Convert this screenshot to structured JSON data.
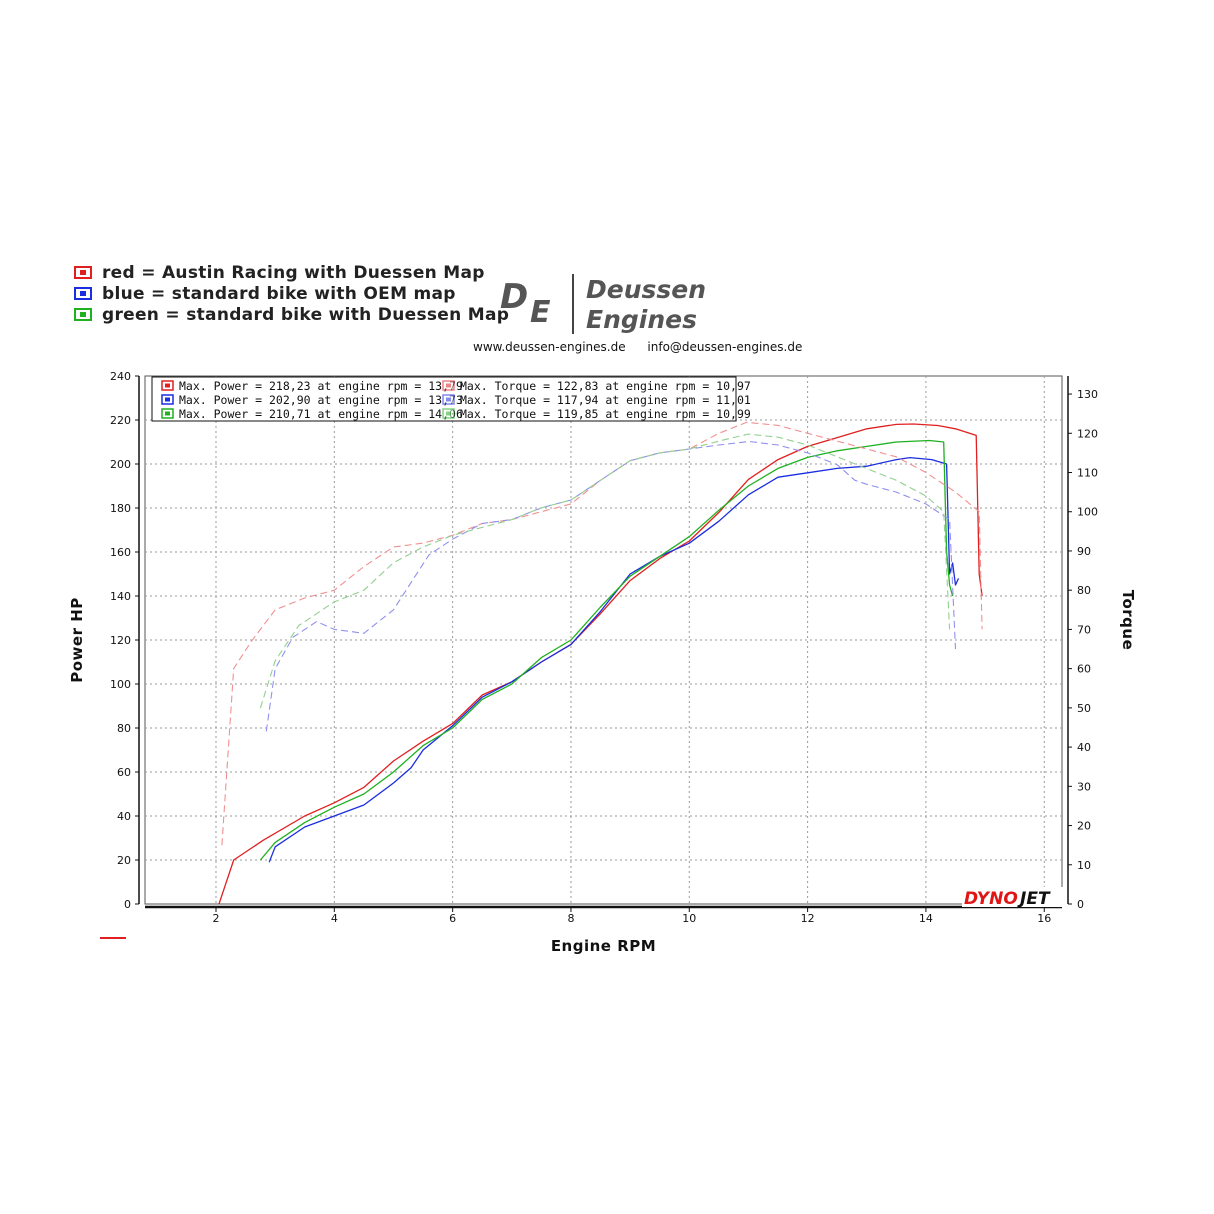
{
  "legend": [
    {
      "label": "red = Austin Racing with Duessen Map",
      "color": "#e02020"
    },
    {
      "label": "blue = standard bike with OEM map",
      "color": "#1a2ee0"
    },
    {
      "label": "green = standard bike with Duessen Map",
      "color": "#20b020"
    }
  ],
  "logo": {
    "brand_line1": "Deussen",
    "brand_line2": "Engines",
    "monogram_d": "D",
    "monogram_e": "E",
    "website": "www.deussen-engines.de",
    "email": "info@deussen-engines.de"
  },
  "dynojet": {
    "part1": "DYNO",
    "part2": "JET"
  },
  "chart_data": {
    "type": "line",
    "xlabel": "Engine RPM",
    "ylabel": "Power HP",
    "y2label": "Torque",
    "xlim": [
      0.8,
      16.3
    ],
    "ylim": [
      0,
      240
    ],
    "y2lim": [
      0,
      134.6
    ],
    "xticks": [
      2,
      4,
      6,
      8,
      10,
      12,
      14,
      16
    ],
    "yticks": [
      0,
      20,
      40,
      60,
      80,
      100,
      120,
      140,
      160,
      180,
      200,
      220,
      240
    ],
    "y2ticks": [
      0,
      10,
      20,
      30,
      40,
      50,
      60,
      70,
      80,
      90,
      100,
      110,
      120,
      130
    ],
    "grid": true,
    "summary": [
      {
        "color": "#e02020",
        "power": "Max. Power = 218,23 at engine rpm = 13,79",
        "torque": "Max. Torque = 122,83 at engine rpm = 10,97"
      },
      {
        "color": "#1a2ee0",
        "power": "Max. Power = 202,90 at engine rpm = 13,73",
        "torque": "Max. Torque = 117,94 at engine rpm = 11,01"
      },
      {
        "color": "#20b020",
        "power": "Max. Power = 210,71 at engine rpm = 14,06",
        "torque": "Max. Torque = 119,85 at engine rpm = 10,99"
      }
    ],
    "series": [
      {
        "metric": "power",
        "color": "#e02020",
        "x": [
          2.05,
          2.3,
          2.8,
          3.5,
          4.0,
          4.5,
          5.0,
          5.5,
          6.0,
          6.5,
          7.0,
          7.5,
          8.0,
          8.5,
          9.0,
          9.5,
          10.0,
          10.5,
          11.0,
          11.5,
          12.0,
          12.5,
          13.0,
          13.5,
          13.79,
          14.2,
          14.5,
          14.85,
          14.9,
          14.95
        ],
        "y": [
          0,
          20,
          29,
          40,
          46,
          53,
          65,
          74,
          82,
          95,
          101,
          110,
          118,
          132,
          147,
          157,
          165,
          178,
          193,
          202,
          208,
          212,
          216,
          218,
          218.2,
          217.5,
          216,
          213,
          150,
          140
        ]
      },
      {
        "metric": "power",
        "color": "#1a2ee0",
        "x": [
          2.9,
          3.0,
          3.5,
          4.0,
          4.5,
          5.0,
          5.3,
          5.5,
          6.0,
          6.5,
          7.0,
          7.5,
          8.0,
          8.5,
          9.0,
          9.5,
          10.0,
          10.5,
          11.0,
          11.5,
          12.0,
          12.5,
          13.0,
          13.5,
          13.73,
          14.1,
          14.35,
          14.4,
          14.45,
          14.5,
          14.55
        ],
        "y": [
          19,
          26,
          35,
          40,
          45,
          55,
          62,
          70,
          81,
          94,
          101,
          110,
          118,
          133,
          150,
          158,
          164,
          174,
          186,
          194,
          196,
          198,
          199,
          202,
          202.9,
          202,
          200,
          150,
          155,
          145,
          148
        ]
      },
      {
        "metric": "power",
        "color": "#20b020",
        "x": [
          2.75,
          3.0,
          3.5,
          4.0,
          4.5,
          5.0,
          5.5,
          6.0,
          6.5,
          7.0,
          7.5,
          8.0,
          8.5,
          9.0,
          9.5,
          10.0,
          10.5,
          11.0,
          11.5,
          12.0,
          12.5,
          13.0,
          13.5,
          14.06,
          14.3,
          14.35,
          14.4,
          14.45
        ],
        "y": [
          20,
          28,
          37,
          44,
          50,
          60,
          72,
          80,
          93,
          100,
          112,
          120,
          135,
          149,
          158,
          167,
          179,
          190,
          198,
          203,
          206,
          208,
          210,
          210.7,
          210,
          160,
          145,
          140
        ]
      },
      {
        "metric": "torque",
        "color": "#f09090",
        "x": [
          2.1,
          2.3,
          2.6,
          3.0,
          3.5,
          4.0,
          4.5,
          5.0,
          5.5,
          6.0,
          6.5,
          7.0,
          7.5,
          8.0,
          8.5,
          9.0,
          9.5,
          10.0,
          10.5,
          10.97,
          11.5,
          12.0,
          12.5,
          13.0,
          13.5,
          14.0,
          14.5,
          14.9,
          14.95
        ],
        "y": [
          15,
          60,
          67,
          75,
          78,
          80,
          86,
          91,
          92,
          94,
          97,
          98,
          100,
          102,
          108,
          113,
          115,
          116,
          120,
          122.8,
          122,
          120,
          118,
          116,
          114,
          110,
          105,
          100,
          70
        ]
      },
      {
        "metric": "torque",
        "color": "#9090f0",
        "x": [
          2.85,
          3.0,
          3.3,
          3.7,
          4.0,
          4.5,
          5.0,
          5.3,
          5.6,
          6.0,
          6.5,
          7.0,
          7.5,
          8.0,
          8.5,
          9.0,
          9.5,
          10.0,
          10.5,
          11.01,
          11.5,
          12.0,
          12.5,
          12.8,
          13.0,
          13.5,
          14.0,
          14.4,
          14.5
        ],
        "y": [
          44,
          60,
          68,
          72,
          70,
          69,
          75,
          82,
          89,
          93,
          97,
          98,
          101,
          103,
          108,
          113,
          115,
          116,
          117,
          117.9,
          117,
          115,
          112,
          108,
          107,
          105,
          102,
          98,
          65
        ]
      },
      {
        "metric": "torque",
        "color": "#90d090",
        "x": [
          2.75,
          3.0,
          3.4,
          4.0,
          4.5,
          5.0,
          5.5,
          6.0,
          6.5,
          7.0,
          7.5,
          8.0,
          8.5,
          9.0,
          9.5,
          10.0,
          10.5,
          10.99,
          11.5,
          12.0,
          12.5,
          13.0,
          13.5,
          14.0,
          14.3,
          14.4
        ],
        "y": [
          50,
          62,
          71,
          77,
          80,
          87,
          91,
          94,
          96,
          98,
          101,
          103,
          108,
          113,
          115,
          116,
          118,
          119.8,
          119,
          117,
          114,
          111,
          108,
          104,
          100,
          70
        ]
      }
    ]
  }
}
